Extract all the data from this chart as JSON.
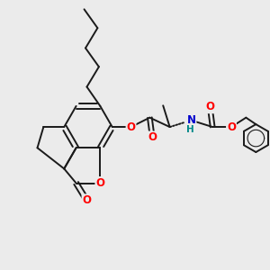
{
  "bg_color": "#ebebeb",
  "bond_color": "#1a1a1a",
  "bond_width": 1.4,
  "atom_colors": {
    "O": "#ff0000",
    "N": "#0000cc",
    "H": "#008888",
    "C": "#1a1a1a"
  },
  "font_size_atom": 8.5,
  "fig_width": 3.0,
  "fig_height": 3.0,
  "dpi": 100
}
